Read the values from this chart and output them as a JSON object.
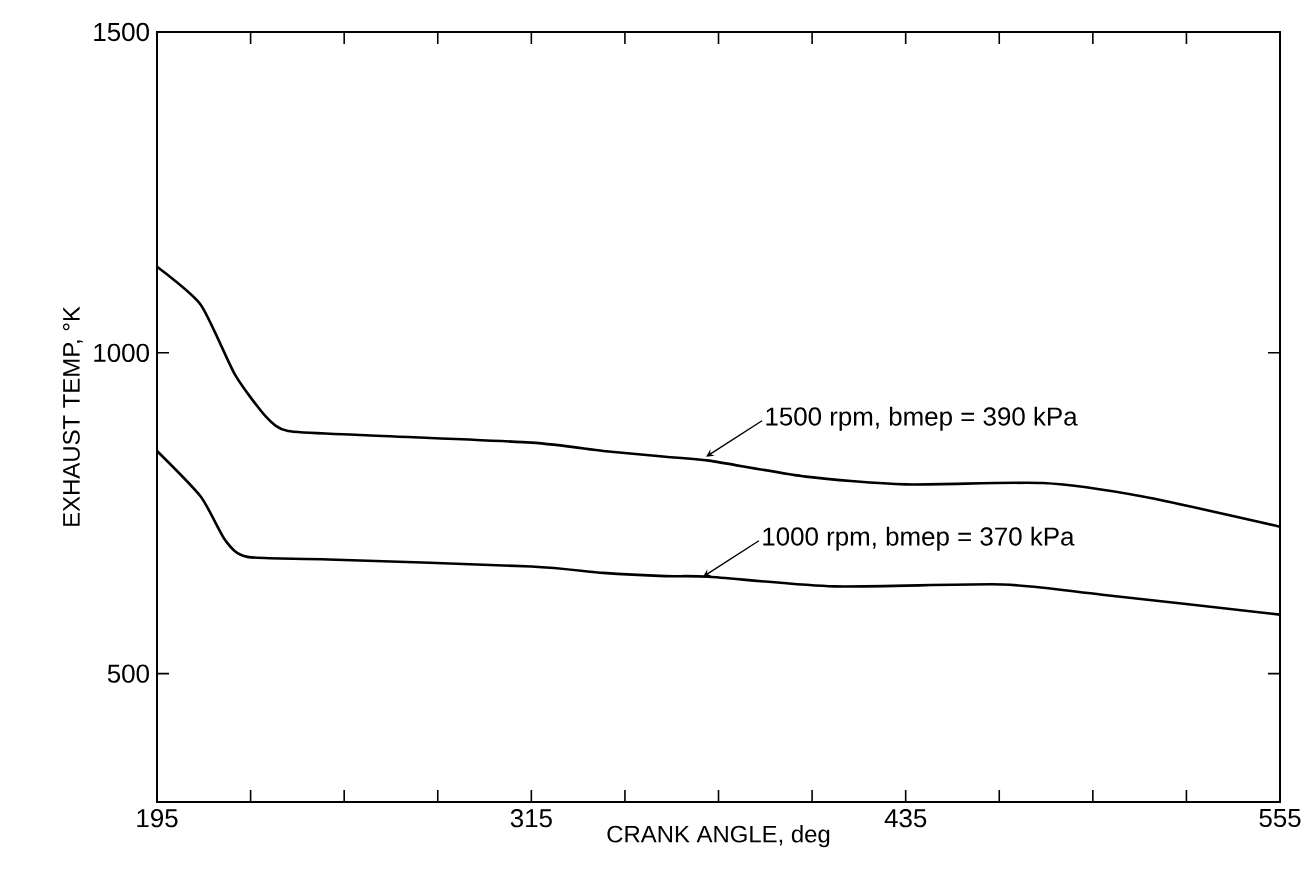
{
  "chart_data": {
    "type": "line",
    "xlabel": "CRANK ANGLE, deg",
    "ylabel": "EXHAUST TEMP, °K",
    "xlim": [
      195,
      555
    ],
    "ylim": [
      300,
      1500
    ],
    "xticks": [
      195,
      {
        "value": 225,
        "label": null
      },
      {
        "value": 255,
        "label": null
      },
      {
        "value": 285,
        "label": null
      },
      315,
      {
        "value": 345,
        "label": null
      },
      {
        "value": 375,
        "label": null
      },
      {
        "value": 405,
        "label": null
      },
      435,
      {
        "value": 465,
        "label": null
      },
      {
        "value": 495,
        "label": null
      },
      {
        "value": 525,
        "label": null
      },
      555
    ],
    "yticks": [
      500,
      1000,
      1500
    ],
    "series": [
      {
        "color": "#000000",
        "x": [
          195,
          209,
          220,
          230,
          237,
          260,
          315,
          338,
          358,
          372,
          403,
          435,
          479,
          511,
          555
        ],
        "values": [
          1134,
          1075,
          966,
          900,
          878,
          872,
          860,
          847,
          838,
          832,
          807,
          795,
          797,
          776,
          729
        ]
      },
      {
        "color": "#000000",
        "x": [
          195,
          209,
          217,
          224,
          250,
          315,
          338,
          358,
          372,
          412,
          466,
          498,
          555
        ],
        "values": [
          847,
          776,
          707,
          682,
          678,
          667,
          657,
          652,
          651,
          636,
          639,
          623,
          592
        ]
      }
    ],
    "annotations": [
      {
        "text": "1500 rpm, bmep = 390 kPa",
        "x": 371,
        "y": 838
      },
      {
        "text": "1000 rpm, bmep = 370 kPa",
        "x": 370,
        "y": 651
      }
    ]
  }
}
